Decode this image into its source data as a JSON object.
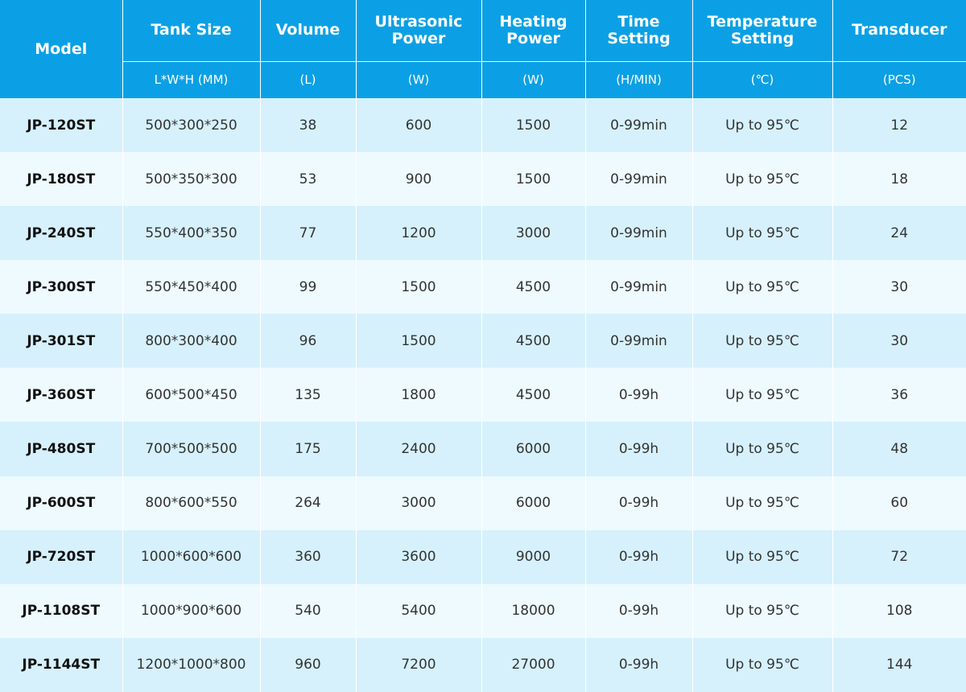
{
  "table": {
    "headers": [
      {
        "title": "Model",
        "unit": ""
      },
      {
        "title": "Tank Size",
        "unit": "L*W*H (MM)"
      },
      {
        "title": "Volume",
        "unit": "(L)"
      },
      {
        "title": "Ultrasonic Power",
        "unit": "(W)"
      },
      {
        "title": "Heating Power",
        "unit": "(W)"
      },
      {
        "title": "Time Setting",
        "unit": "(H/MIN)"
      },
      {
        "title": "Temperature Setting",
        "unit": "(℃)"
      },
      {
        "title": "Transducer",
        "unit": "(PCS)"
      }
    ],
    "rows": [
      [
        "JP-120ST",
        "500*300*250",
        "38",
        "600",
        "1500",
        "0-99min",
        "Up to 95℃",
        "12"
      ],
      [
        "JP-180ST",
        "500*350*300",
        "53",
        "900",
        "1500",
        "0-99min",
        "Up to 95℃",
        "18"
      ],
      [
        "JP-240ST",
        "550*400*350",
        "77",
        "1200",
        "3000",
        "0-99min",
        "Up to 95℃",
        "24"
      ],
      [
        "JP-300ST",
        "550*450*400",
        "99",
        "1500",
        "4500",
        "0-99min",
        "Up to 95℃",
        "30"
      ],
      [
        "JP-301ST",
        "800*300*400",
        "96",
        "1500",
        "4500",
        "0-99min",
        "Up to 95℃",
        "30"
      ],
      [
        "JP-360ST",
        "600*500*450",
        "135",
        "1800",
        "4500",
        "0-99h",
        "Up to 95℃",
        "36"
      ],
      [
        "JP-480ST",
        "700*500*500",
        "175",
        "2400",
        "6000",
        "0-99h",
        "Up to 95℃",
        "48"
      ],
      [
        "JP-600ST",
        "800*600*550",
        "264",
        "3000",
        "6000",
        "0-99h",
        "Up to 95℃",
        "60"
      ],
      [
        "JP-720ST",
        "1000*600*600",
        "360",
        "3600",
        "9000",
        "0-99h",
        "Up to 95℃",
        "72"
      ],
      [
        "JP-1108ST",
        "1000*900*600",
        "540",
        "5400",
        "18000",
        "0-99h",
        "Up to 95℃",
        "108"
      ],
      [
        "JP-1144ST",
        "1200*1000*800",
        "960",
        "7200",
        "27000",
        "0-99h",
        "Up to 95℃",
        "144"
      ]
    ]
  },
  "colors": {
    "header_bg": "#0ba0e5",
    "header_text": "#ffffff",
    "row_odd_bg": "#d6f1fc",
    "row_even_bg": "#eefafe",
    "body_text": "#333333"
  }
}
